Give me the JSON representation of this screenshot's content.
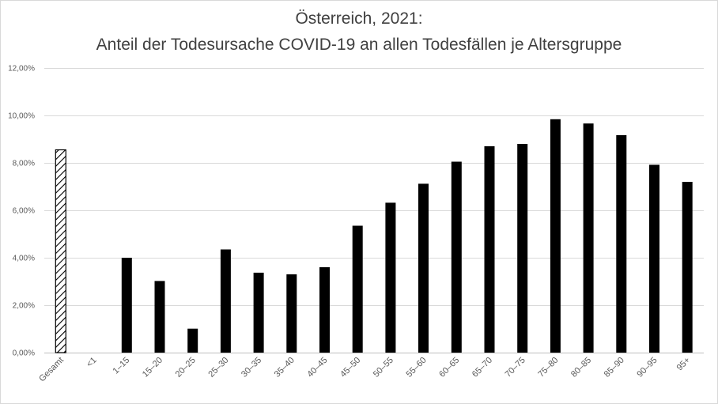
{
  "chart_data": {
    "type": "bar",
    "title": "Österreich, 2021:",
    "subtitle": "Anteil der Todesursache COVID-19 an allen Todesfällen je Altersgruppe",
    "xlabel": "",
    "ylabel": "",
    "ylim": [
      0,
      0.12
    ],
    "yticks": [
      "0,00%",
      "2,00%",
      "4,00%",
      "6,00%",
      "8,00%",
      "10,00%",
      "12,00%"
    ],
    "grid": true,
    "categories": [
      "Gesamt",
      "<1",
      "1–15",
      "15–20",
      "20–25",
      "25–30",
      "30–35",
      "35–40",
      "40–45",
      "45–50",
      "50–55",
      "55–60",
      "60–65",
      "65–70",
      "70–75",
      "75–80",
      "80–85",
      "85–90",
      "90–95",
      "95+"
    ],
    "values": [
      0.0855,
      0.0,
      0.04,
      0.0302,
      0.0101,
      0.0435,
      0.0337,
      0.033,
      0.036,
      0.0535,
      0.0632,
      0.0712,
      0.0805,
      0.087,
      0.088,
      0.0984,
      0.0966,
      0.0917,
      0.0792,
      0.072
    ],
    "bar_styles": [
      "hatched",
      "solid",
      "solid",
      "solid",
      "solid",
      "solid",
      "solid",
      "solid",
      "solid",
      "solid",
      "solid",
      "solid",
      "solid",
      "solid",
      "solid",
      "solid",
      "solid",
      "solid",
      "solid",
      "solid"
    ],
    "colors": {
      "bar": "#000000",
      "grid": "#d9d9d9",
      "text": "#595959",
      "title": "#404040"
    }
  }
}
